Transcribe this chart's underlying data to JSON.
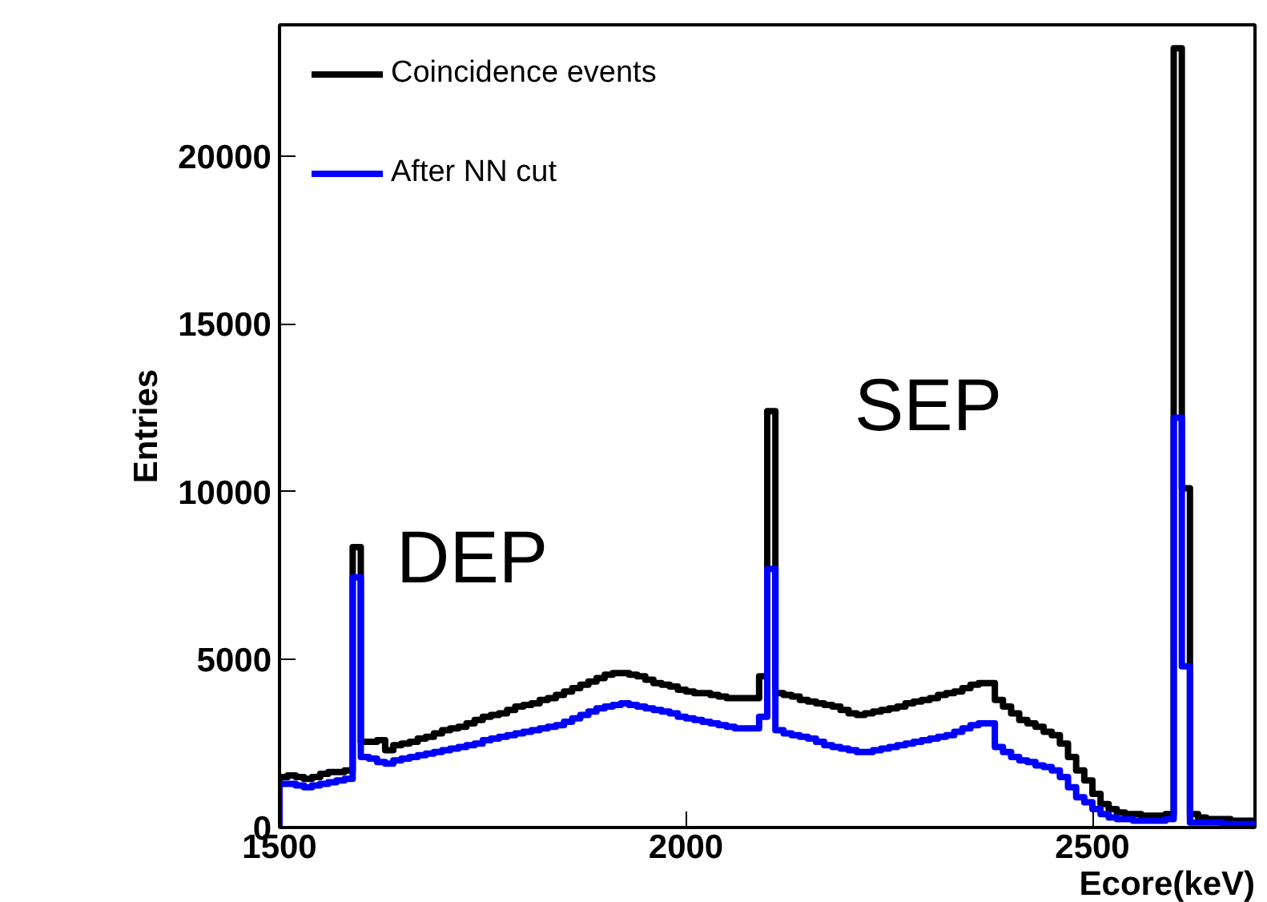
{
  "chart_data": {
    "type": "histogram",
    "xlabel": "Ecore(keV)",
    "ylabel": "Entries",
    "bins": [
      1500,
      1510,
      1520,
      1530,
      1540,
      1550,
      1560,
      1570,
      1580,
      1590,
      1600,
      1610,
      1620,
      1630,
      1640,
      1650,
      1660,
      1670,
      1680,
      1690,
      1700,
      1710,
      1720,
      1730,
      1740,
      1750,
      1760,
      1770,
      1780,
      1790,
      1800,
      1810,
      1820,
      1830,
      1840,
      1850,
      1860,
      1870,
      1880,
      1890,
      1900,
      1910,
      1920,
      1930,
      1940,
      1950,
      1960,
      1970,
      1980,
      1990,
      2000,
      2010,
      2020,
      2030,
      2040,
      2050,
      2060,
      2070,
      2080,
      2090,
      2100,
      2110,
      2120,
      2130,
      2140,
      2150,
      2160,
      2170,
      2180,
      2190,
      2200,
      2210,
      2220,
      2230,
      2240,
      2250,
      2260,
      2270,
      2280,
      2290,
      2300,
      2310,
      2320,
      2330,
      2340,
      2350,
      2360,
      2370,
      2380,
      2390,
      2400,
      2410,
      2420,
      2430,
      2440,
      2450,
      2460,
      2470,
      2480,
      2490,
      2500,
      2510,
      2520,
      2530,
      2540,
      2550,
      2560,
      2570,
      2580,
      2590,
      2600,
      2610,
      2620,
      2630,
      2640,
      2650,
      2660,
      2670,
      2680,
      2690,
      2700
    ],
    "series": [
      {
        "name": "Coincidence events",
        "color": "#000000",
        "values": [
          1500,
          1550,
          1500,
          1450,
          1500,
          1600,
          1650,
          1650,
          1700,
          8350,
          2550,
          2550,
          2600,
          2300,
          2450,
          2500,
          2550,
          2650,
          2700,
          2800,
          2900,
          2950,
          3000,
          3100,
          3200,
          3300,
          3350,
          3400,
          3500,
          3600,
          3650,
          3700,
          3800,
          3850,
          3950,
          4050,
          4150,
          4250,
          4350,
          4450,
          4550,
          4600,
          4600,
          4550,
          4500,
          4400,
          4300,
          4250,
          4200,
          4100,
          4050,
          4000,
          4000,
          3950,
          3900,
          3850,
          3850,
          3850,
          3850,
          4500,
          12400,
          4000,
          3950,
          3900,
          3800,
          3750,
          3700,
          3650,
          3600,
          3500,
          3400,
          3350,
          3400,
          3450,
          3500,
          3550,
          3600,
          3700,
          3750,
          3800,
          3850,
          3950,
          4000,
          4050,
          4150,
          4250,
          4300,
          4300,
          3800,
          3600,
          3400,
          3200,
          3100,
          3000,
          2850,
          2750,
          2500,
          2100,
          1700,
          1400,
          1000,
          700,
          550,
          450,
          400,
          400,
          350,
          350,
          350,
          400,
          23200,
          10100,
          400,
          300,
          250,
          250,
          250,
          200,
          200,
          200
        ]
      },
      {
        "name": "After NN cut",
        "color": "#0000ff",
        "values": [
          1300,
          1300,
          1250,
          1200,
          1250,
          1300,
          1350,
          1400,
          1450,
          7450,
          2100,
          2050,
          1950,
          1900,
          2000,
          2050,
          2100,
          2150,
          2200,
          2250,
          2300,
          2350,
          2400,
          2450,
          2500,
          2600,
          2650,
          2700,
          2750,
          2800,
          2850,
          2900,
          2950,
          3000,
          3050,
          3150,
          3250,
          3350,
          3450,
          3550,
          3600,
          3650,
          3700,
          3650,
          3600,
          3550,
          3500,
          3450,
          3400,
          3300,
          3250,
          3200,
          3150,
          3100,
          3050,
          3000,
          2950,
          2950,
          2950,
          3300,
          7700,
          2900,
          2800,
          2750,
          2700,
          2650,
          2550,
          2450,
          2400,
          2350,
          2300,
          2250,
          2250,
          2300,
          2350,
          2400,
          2450,
          2500,
          2550,
          2600,
          2650,
          2700,
          2750,
          2850,
          2950,
          3050,
          3100,
          3100,
          2400,
          2250,
          2100,
          2000,
          1950,
          1850,
          1800,
          1700,
          1500,
          1200,
          900,
          750,
          550,
          400,
          300,
          250,
          250,
          200,
          200,
          200,
          200,
          250,
          12200,
          4800,
          150,
          150,
          150,
          150,
          100,
          100,
          100,
          100
        ]
      }
    ],
    "xlim": [
      1500,
      2700
    ],
    "xticks": [
      1500,
      2000,
      2500
    ],
    "ylim": [
      0,
      23900
    ],
    "yticks": [
      0,
      5000,
      10000,
      15000,
      20000
    ],
    "grid": false,
    "legend": "top left",
    "annotations": [
      "DEP",
      "SEP"
    ]
  }
}
